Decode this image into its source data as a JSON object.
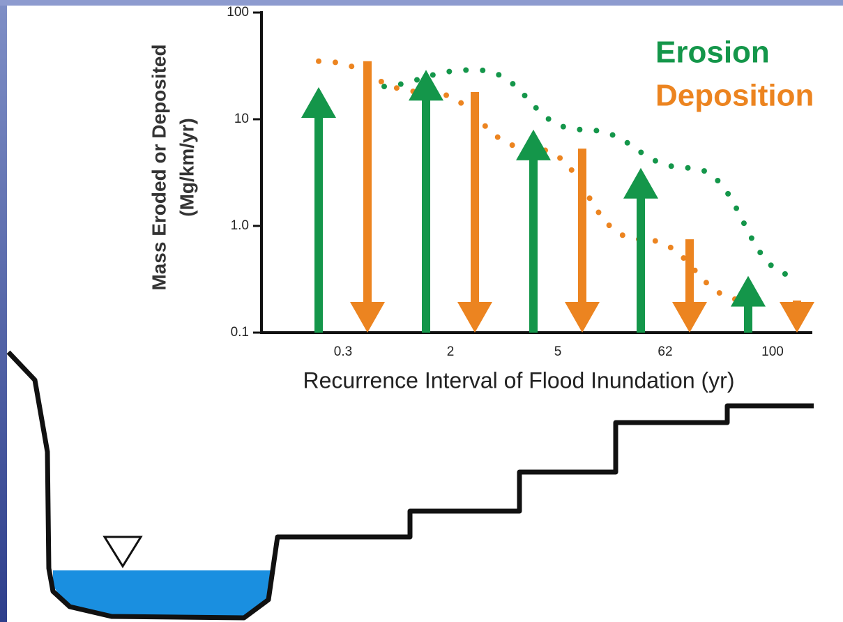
{
  "chart_data": {
    "type": "arrow",
    "ylabel": "Mass Eroded or Deposited",
    "ylabel_units": "(Mg/km/yr)",
    "xlabel": "Recurrence Interval of Flood Inundation (yr)",
    "categories": [
      "0.3",
      "2",
      "5",
      "62",
      "100"
    ],
    "series": [
      {
        "name": "Erosion",
        "color": "#14964a",
        "direction": "up",
        "values": [
          20,
          29,
          8,
          3.5,
          0.34
        ]
      },
      {
        "name": "Deposition",
        "color": "#ec8420",
        "direction": "down",
        "values": [
          35,
          18,
          5.3,
          0.75,
          0.2
        ]
      }
    ],
    "ylim": [
      0.1,
      100
    ],
    "yticks": [
      100,
      10,
      {
        "value": 1,
        "label": "1.0"
      },
      0.1
    ],
    "log_y": true,
    "legend": "top-right"
  }
}
